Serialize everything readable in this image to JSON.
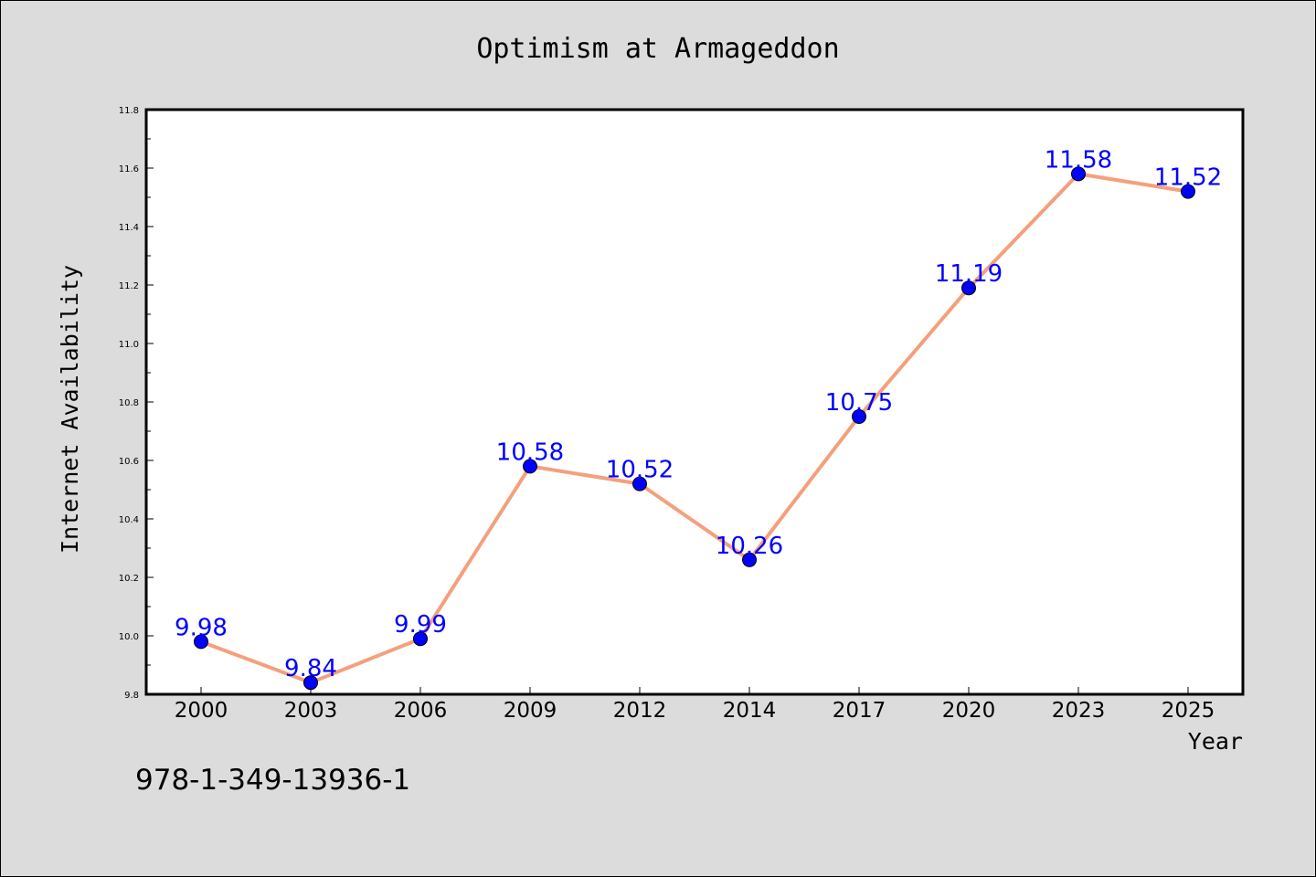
{
  "chart_data": {
    "type": "line",
    "title": "Optimism at Armageddon",
    "xlabel": "Year",
    "ylabel": "Internet Availability",
    "categories": [
      "2000",
      "2003",
      "2006",
      "2009",
      "2012",
      "2014",
      "2017",
      "2020",
      "2023",
      "2025"
    ],
    "values": [
      9.98,
      9.84,
      9.99,
      10.58,
      10.52,
      10.26,
      10.75,
      11.19,
      11.58,
      11.52
    ],
    "data_labels": [
      "9.98",
      "9.84",
      "9.99",
      "10.58",
      "10.52",
      "10.26",
      "10.75",
      "11.19",
      "11.58",
      "11.52"
    ],
    "ylim": [
      9.8,
      11.8
    ],
    "yticks": [
      "9.8",
      "10.0",
      "10.2",
      "10.4",
      "10.6",
      "10.8",
      "11.0",
      "11.2",
      "11.4",
      "11.6",
      "11.8"
    ],
    "grid": false,
    "legend": "none",
    "colors": {
      "line": "#f4a07c",
      "marker": "#0000ff",
      "data_label": "#0000ff",
      "plot_background": "#ffffff",
      "figure_background": "#dcdcdc"
    }
  },
  "footer": {
    "isbn": "978-1-349-13936-1"
  }
}
